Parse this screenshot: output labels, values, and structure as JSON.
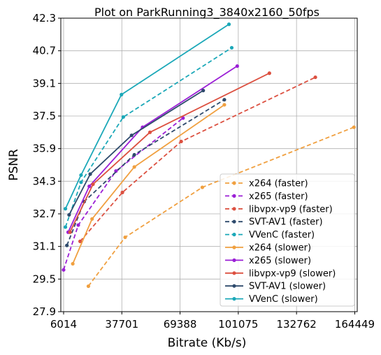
{
  "chart_data": {
    "type": "line",
    "title": "Plot on ParkRunning3_3840x2160_50fps",
    "xlabel": "Bitrate (Kb/s)",
    "ylabel": "PSNR",
    "xlim": [
      4500,
      165800
    ],
    "ylim": [
      27.9,
      42.3
    ],
    "xticks": [
      6014,
      37701,
      69388,
      101075,
      132762,
      164449
    ],
    "xtick_labels": [
      "6014",
      "37701",
      "69388",
      "101075",
      "132762",
      "164449"
    ],
    "yticks": [
      27.9,
      29.5,
      31.1,
      32.7,
      34.3,
      35.9,
      37.5,
      39.1,
      40.7,
      42.3
    ],
    "ytick_labels": [
      "27.9",
      "29.5",
      "31.1",
      "32.7",
      "34.3",
      "35.9",
      "37.5",
      "39.1",
      "40.7",
      "42.3"
    ],
    "grid": true,
    "legend_position": "lower-right",
    "series": [
      {
        "name": "x264 (faster)",
        "color": "#f0a040",
        "dashed": true,
        "x": [
          19500,
          39500,
          81500,
          164000
        ],
        "y": [
          29.15,
          31.55,
          34.0,
          36.95
        ]
      },
      {
        "name": "x265 (faster)",
        "color": "#9b1fd6",
        "dashed": true,
        "x": [
          6000,
          14000,
          34500,
          71000
        ],
        "y": [
          29.95,
          32.15,
          34.8,
          37.4
        ]
      },
      {
        "name": "libvpx-vp9 (faster)",
        "color": "#dc5040",
        "dashed": true,
        "x": [
          15000,
          38000,
          70000,
          143000
        ],
        "y": [
          31.35,
          33.75,
          36.25,
          39.4
        ]
      },
      {
        "name": "SVT-AV1 (faster)",
        "color": "#2e4a6c",
        "dashed": true,
        "x": [
          7800,
          17200,
          44500,
          93500
        ],
        "y": [
          31.15,
          33.3,
          35.6,
          38.3
        ]
      },
      {
        "name": "VVenC (faster)",
        "color": "#1ba8b8",
        "dashed": true,
        "x": [
          7000,
          15500,
          38500,
          97500
        ],
        "y": [
          32.05,
          34.25,
          37.45,
          40.85
        ]
      },
      {
        "name": "x264 (slower)",
        "color": "#f0a040",
        "dashed": false,
        "x": [
          11000,
          21500,
          44500,
          93500
        ],
        "y": [
          30.25,
          32.45,
          35.0,
          38.05
        ]
      },
      {
        "name": "x265 (slower)",
        "color": "#9b1fd6",
        "dashed": false,
        "x": [
          8500,
          20000,
          49000,
          100500
        ],
        "y": [
          31.8,
          34.05,
          36.95,
          39.95
        ]
      },
      {
        "name": "libvpx-vp9 (slower)",
        "color": "#dc5040",
        "dashed": false,
        "x": [
          9500,
          22000,
          53000,
          118000
        ],
        "y": [
          31.8,
          34.15,
          36.7,
          39.6
        ]
      },
      {
        "name": "SVT-AV1 (slower)",
        "color": "#2e4a6c",
        "dashed": false,
        "x": [
          9000,
          20500,
          43000,
          82000
        ],
        "y": [
          32.65,
          34.65,
          36.55,
          38.75
        ]
      },
      {
        "name": "VVenC (slower)",
        "color": "#1ba8b8",
        "dashed": false,
        "x": [
          7000,
          15500,
          37500,
          96000
        ],
        "y": [
          32.95,
          34.6,
          38.55,
          42.0
        ]
      }
    ]
  }
}
